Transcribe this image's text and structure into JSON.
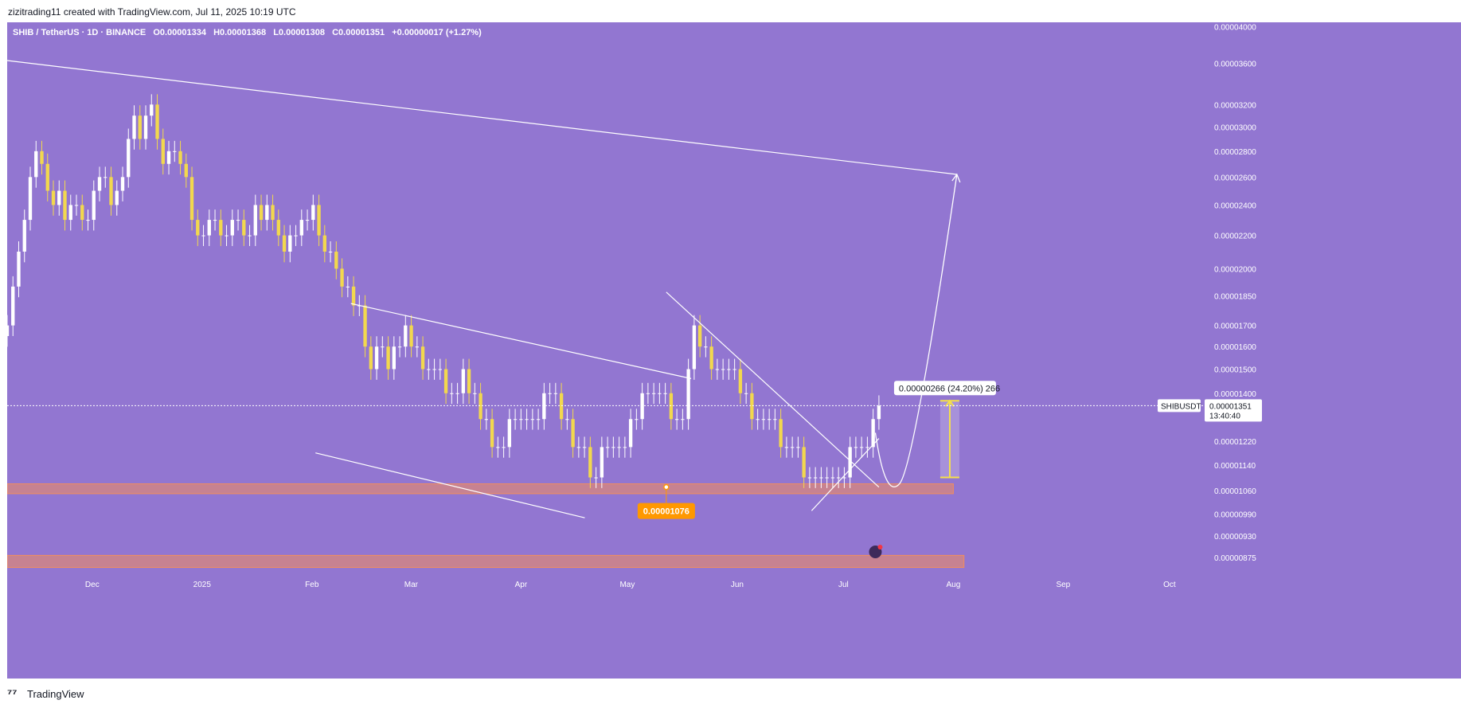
{
  "header": {
    "credit": "zizitrading11 created with TradingView.com, Jul 11, 2025 10:19 UTC"
  },
  "legend": {
    "pair": "SHIB / TetherUS · 1D · BINANCE",
    "open": "O0.00001334",
    "high": "H0.00001368",
    "low": "L0.00001308",
    "close": "C0.00001351",
    "change": "+0.00000017 (+1.27%)"
  },
  "footer": {
    "brand": "TradingView",
    "logo_icon": "tradingview-logo-icon"
  },
  "colors": {
    "background": "#9276d1",
    "up": "#ffffff",
    "down": "#f2d84e",
    "zone": "#f28d5d",
    "accent_label": "#ff9800",
    "projection": "#f5e04a"
  },
  "annotations": {
    "support_label": "0.00001076",
    "measure_label": "0.00000266 (24.20%) 266",
    "ticker_label": "SHIBUSDT",
    "price_label": "0.00001351",
    "countdown_label": "13:40:40"
  },
  "chart_data": {
    "type": "candlestick",
    "title": "",
    "x_ticks": [
      "Dec",
      "2025",
      "Feb",
      "Mar",
      "Apr",
      "May",
      "Jun",
      "Jul",
      "Aug",
      "Sep",
      "Oct"
    ],
    "y_scale": "log",
    "y_ticks": [
      "0.00004000",
      "0.00003600",
      "0.00003200",
      "0.00003000",
      "0.00002800",
      "0.00002600",
      "0.00002400",
      "0.00002200",
      "0.00002000",
      "0.00001850",
      "0.00001700",
      "0.00001600",
      "0.00001500",
      "0.00001400",
      "0.00001220",
      "0.00001140",
      "0.00001060",
      "0.00000990",
      "0.00000930",
      "0.00000875"
    ],
    "y_tick_values": [
      4e-05,
      3.6e-05,
      3.2e-05,
      3e-05,
      2.8e-05,
      2.6e-05,
      2.4e-05,
      2.2e-05,
      2e-05,
      1.85e-05,
      1.7e-05,
      1.6e-05,
      1.5e-05,
      1.4e-05,
      1.22e-05,
      1.14e-05,
      1.06e-05,
      9.9e-06,
      9.3e-06,
      8.75e-06
    ],
    "ylim": [
      8.3e-06,
      4.05e-05
    ],
    "x_range": [
      "2024-11-07",
      "2025-10-19"
    ],
    "last_price": 1.351e-05,
    "support_zone": [
      1.05e-05,
      1.08e-05
    ],
    "lower_zone": [
      8.5e-06,
      8.8e-06
    ],
    "candles_close": [
      1.7e-05,
      1.9e-05,
      2.1e-05,
      2.3e-05,
      2.6e-05,
      2.8e-05,
      2.7e-05,
      2.5e-05,
      2.4e-05,
      2.5e-05,
      2.3e-05,
      2.4e-05,
      2.4e-05,
      2.3e-05,
      2.3e-05,
      2.5e-05,
      2.6e-05,
      2.6e-05,
      2.4e-05,
      2.5e-05,
      2.6e-05,
      2.9e-05,
      3.1e-05,
      2.9e-05,
      3.1e-05,
      3.2e-05,
      2.9e-05,
      2.7e-05,
      2.8e-05,
      2.8e-05,
      2.7e-05,
      2.6e-05,
      2.3e-05,
      2.2e-05,
      2.2e-05,
      2.3e-05,
      2.3e-05,
      2.2e-05,
      2.2e-05,
      2.3e-05,
      2.3e-05,
      2.2e-05,
      2.2e-05,
      2.4e-05,
      2.3e-05,
      2.4e-05,
      2.3e-05,
      2.2e-05,
      2.1e-05,
      2.2e-05,
      2.2e-05,
      2.3e-05,
      2.3e-05,
      2.4e-05,
      2.2e-05,
      2.1e-05,
      2.1e-05,
      2e-05,
      1.9e-05,
      1.9e-05,
      1.8e-05,
      1.8e-05,
      1.6e-05,
      1.5e-05,
      1.6e-05,
      1.6e-05,
      1.5e-05,
      1.6e-05,
      1.6e-05,
      1.7e-05,
      1.6e-05,
      1.6e-05,
      1.5e-05,
      1.5e-05,
      1.5e-05,
      1.5e-05,
      1.4e-05,
      1.4e-05,
      1.4e-05,
      1.5e-05,
      1.4e-05,
      1.4e-05,
      1.3e-05,
      1.3e-05,
      1.2e-05,
      1.2e-05,
      1.2e-05,
      1.3e-05,
      1.3e-05,
      1.3e-05,
      1.3e-05,
      1.3e-05,
      1.3e-05,
      1.4e-05,
      1.4e-05,
      1.4e-05,
      1.3e-05,
      1.3e-05,
      1.2e-05,
      1.2e-05,
      1.2e-05,
      1.1e-05,
      1.1e-05,
      1.2e-05,
      1.2e-05,
      1.2e-05,
      1.2e-05,
      1.2e-05,
      1.3e-05,
      1.3e-05,
      1.4e-05,
      1.4e-05,
      1.4e-05,
      1.4e-05,
      1.4e-05,
      1.3e-05,
      1.3e-05,
      1.3e-05,
      1.5e-05,
      1.7e-05,
      1.6e-05,
      1.6e-05,
      1.5e-05,
      1.5e-05,
      1.5e-05,
      1.5e-05,
      1.5e-05,
      1.4e-05,
      1.4e-05,
      1.3e-05,
      1.3e-05,
      1.3e-05,
      1.3e-05,
      1.3e-05,
      1.2e-05,
      1.2e-05,
      1.2e-05,
      1.2e-05,
      1.1e-05,
      1.1e-05,
      1.1e-05,
      1.1e-05,
      1.1e-05,
      1.1e-05,
      1.1e-05,
      1.1e-05,
      1.2e-05,
      1.2e-05,
      1.2e-05,
      1.2e-05,
      1.3e-05,
      1.351e-05
    ],
    "trendlines": [
      {
        "name": "long-downtrend",
        "from": [
          "2024-11-07",
          3.63e-05
        ],
        "to": [
          "2025-08-02",
          2.62e-05
        ]
      },
      {
        "name": "channel-top",
        "from": [
          "2025-02-12",
          1.81e-05
        ],
        "to": [
          "2025-05-19",
          1.46e-05
        ]
      },
      {
        "name": "channel-bottom",
        "from": [
          "2025-02-02",
          1.18e-05
        ],
        "to": [
          "2025-04-19",
          9.8e-06
        ]
      },
      {
        "name": "wedge-top",
        "from": [
          "2025-05-12",
          1.87e-05
        ],
        "to": [
          "2025-07-11",
          1.07e-05
        ]
      },
      {
        "name": "wedge-bottom",
        "from": [
          "2025-06-22",
          1e-05
        ],
        "to": [
          "2025-07-11",
          1.23e-05
        ]
      }
    ],
    "projection": {
      "from": [
        "2025-07-10",
        1.25e-05
      ],
      "dip": [
        "2025-07-15",
        1.08e-05
      ],
      "to": [
        "2025-08-02",
        2.62e-05
      ]
    },
    "measure": {
      "date": "2025-07-31",
      "low": 1.1e-05,
      "high": 1.37e-05
    },
    "grid": false
  }
}
